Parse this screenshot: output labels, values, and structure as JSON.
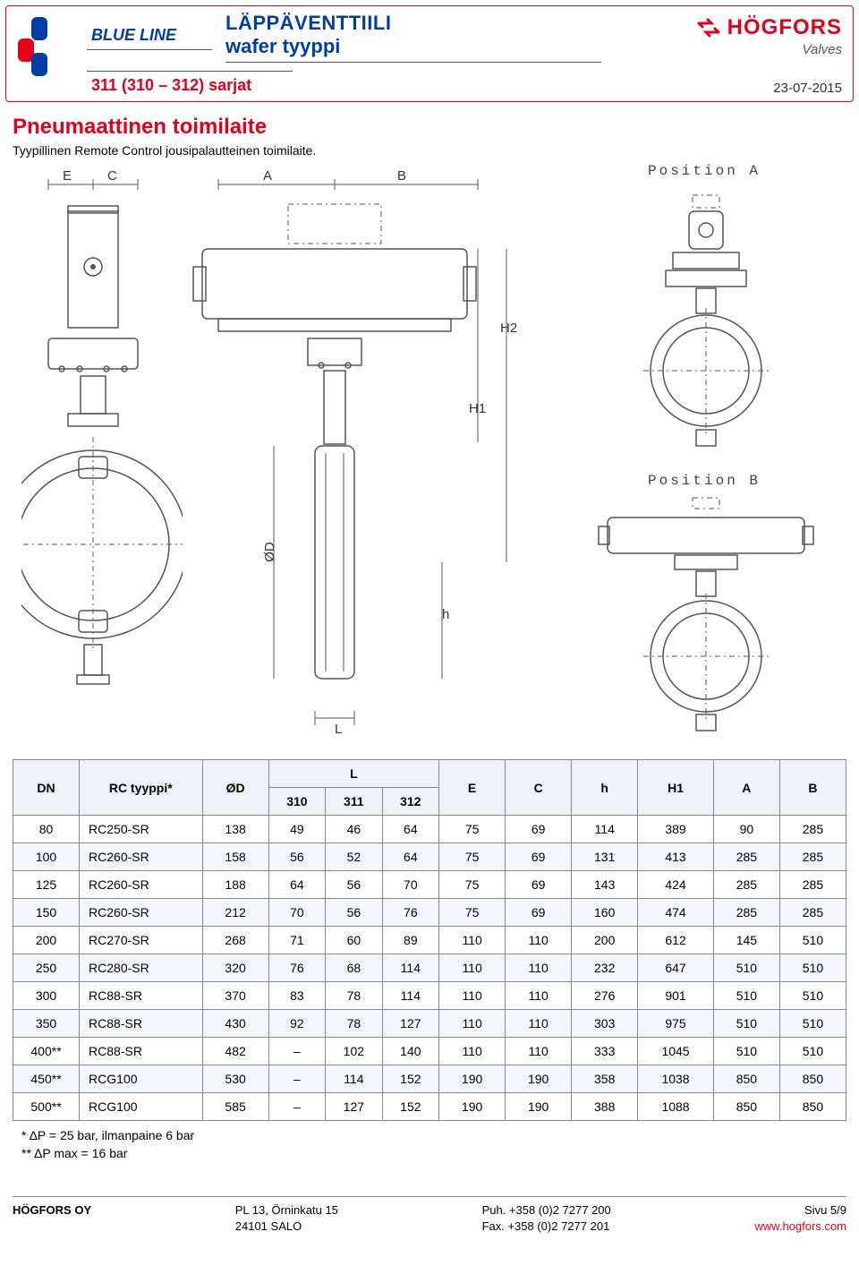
{
  "header": {
    "blue_line": "BLUE LINE",
    "title1": "LÄPPÄVENTTIILI",
    "title2": "wafer tyyppi",
    "series": "311 (310 – 312) sarjat",
    "brand_name": "HÖGFORS",
    "brand_sub": "Valves",
    "date": "23-07-2015",
    "colors": {
      "red": "#e2001a",
      "blue": "#003da5",
      "border": "#888888"
    }
  },
  "section": {
    "title": "Pneumaattinen toimilaite",
    "subtitle": "Tyypillinen Remote Control jousipalautteinen toimilaite."
  },
  "diagram": {
    "labels": {
      "posA": "Position A",
      "posB": "Position B"
    },
    "dims": [
      "E",
      "C",
      "A",
      "B",
      "H1",
      "H2",
      "ØD",
      "h",
      "L"
    ]
  },
  "table": {
    "columns_top": [
      "DN",
      "RC tyyppi*",
      "ØD",
      "L",
      "E",
      "C",
      "h",
      "H1",
      "A",
      "B"
    ],
    "columns_sub_L": [
      "310",
      "311",
      "312"
    ],
    "rows": [
      [
        "80",
        "RC250-SR",
        "138",
        "49",
        "46",
        "64",
        "75",
        "69",
        "114",
        "389",
        "90",
        "285"
      ],
      [
        "100",
        "RC260-SR",
        "158",
        "56",
        "52",
        "64",
        "75",
        "69",
        "131",
        "413",
        "285",
        "285"
      ],
      [
        "125",
        "RC260-SR",
        "188",
        "64",
        "56",
        "70",
        "75",
        "69",
        "143",
        "424",
        "285",
        "285"
      ],
      [
        "150",
        "RC260-SR",
        "212",
        "70",
        "56",
        "76",
        "75",
        "69",
        "160",
        "474",
        "285",
        "285"
      ],
      [
        "200",
        "RC270-SR",
        "268",
        "71",
        "60",
        "89",
        "110",
        "110",
        "200",
        "612",
        "145",
        "510"
      ],
      [
        "250",
        "RC280-SR",
        "320",
        "76",
        "68",
        "114",
        "110",
        "110",
        "232",
        "647",
        "510",
        "510"
      ],
      [
        "300",
        "RC88-SR",
        "370",
        "83",
        "78",
        "114",
        "110",
        "110",
        "276",
        "901",
        "510",
        "510"
      ],
      [
        "350",
        "RC88-SR",
        "430",
        "92",
        "78",
        "127",
        "110",
        "110",
        "303",
        "975",
        "510",
        "510"
      ],
      [
        "400**",
        "RC88-SR",
        "482",
        "–",
        "102",
        "140",
        "110",
        "110",
        "333",
        "1045",
        "510",
        "510"
      ],
      [
        "450**",
        "RCG100",
        "530",
        "–",
        "114",
        "152",
        "190",
        "190",
        "358",
        "1038",
        "850",
        "850"
      ],
      [
        "500**",
        "RCG100",
        "585",
        "–",
        "127",
        "152",
        "190",
        "190",
        "388",
        "1088",
        "850",
        "850"
      ]
    ],
    "col_widths_pct": [
      7,
      13,
      7,
      6,
      6,
      6,
      7,
      7,
      7,
      8,
      7,
      7
    ]
  },
  "notes": {
    "n1": "* ΔP = 25 bar, ilmanpaine 6 bar",
    "n2": "** ΔP max = 16 bar"
  },
  "footer": {
    "company": "HÖGFORS OY",
    "addr1": "PL 13, Örninkatu 15",
    "addr2": "24101 SALO",
    "tel": "Puh. +358 (0)2 7277 200",
    "fax": "Fax. +358 (0)2 7277 201",
    "page": "Sivu 5/9",
    "url": "www.hogfors.com"
  }
}
